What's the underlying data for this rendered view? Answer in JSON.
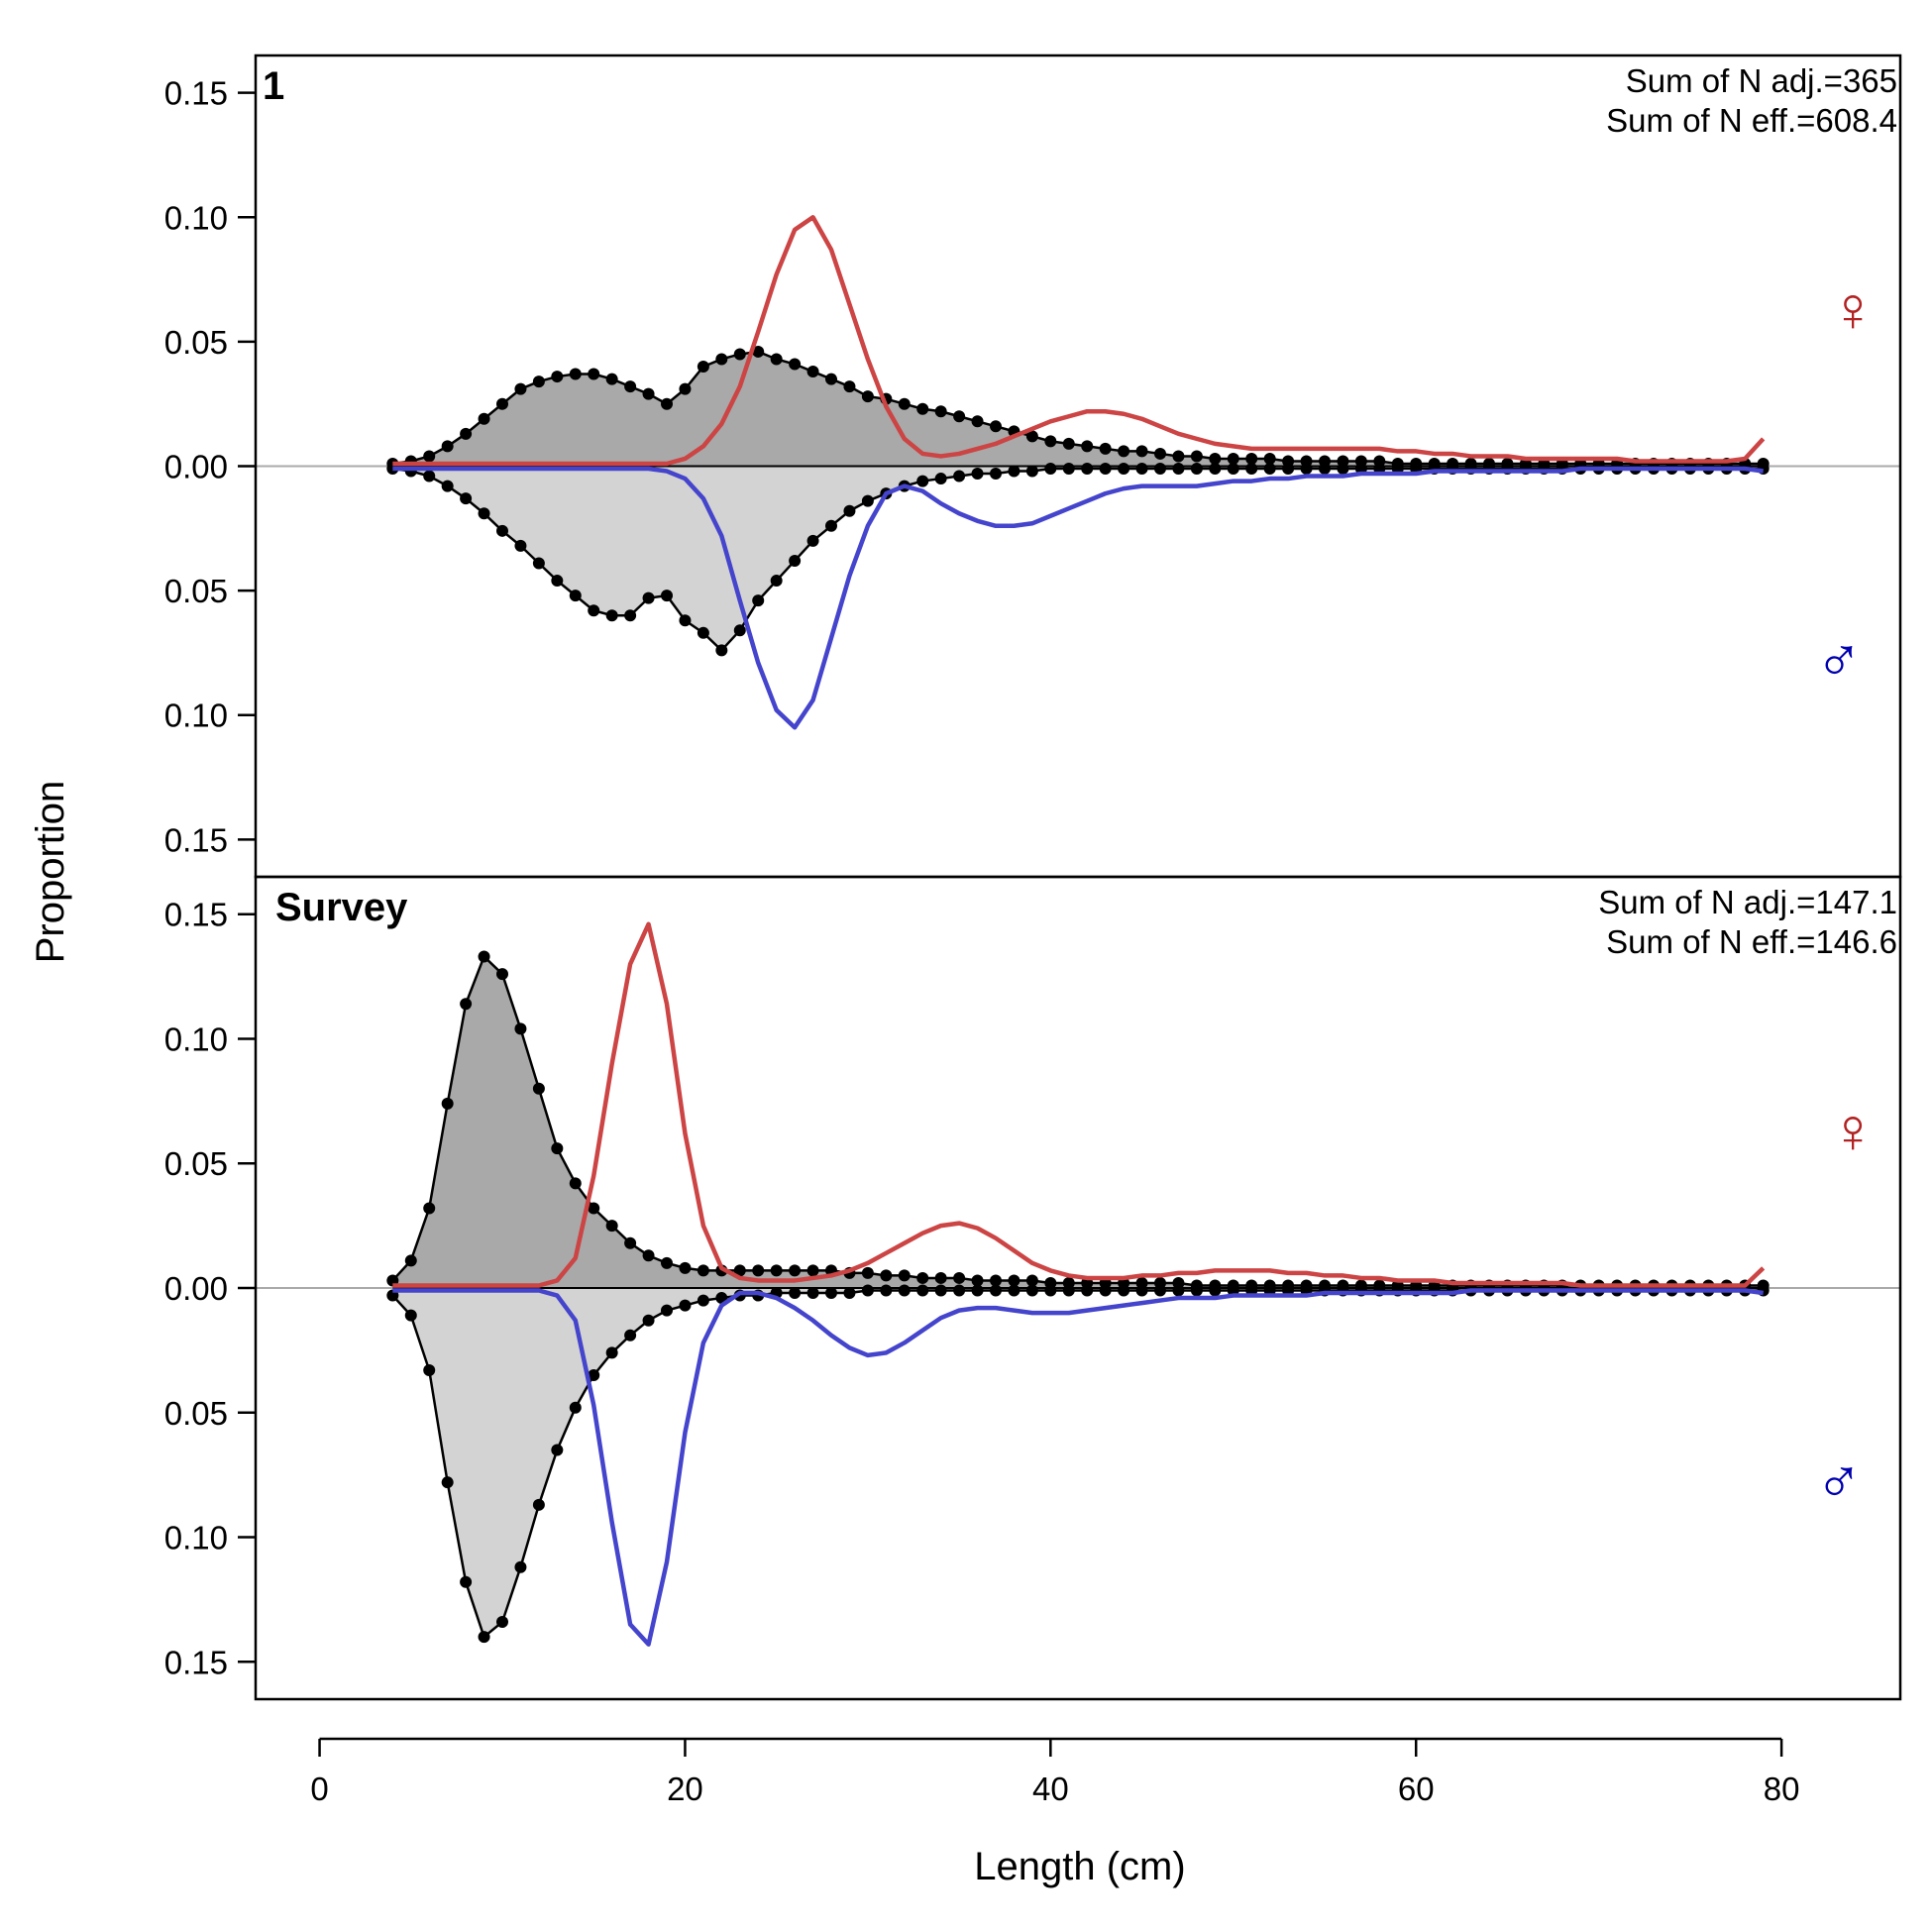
{
  "chart_data": {
    "type": "area",
    "xlabel": "Length (cm)",
    "ylabel": "Proportion",
    "xlim": [
      -3.5,
      86.5
    ],
    "x_ticks": [
      0,
      20,
      40,
      60,
      80
    ],
    "x_tick_labels": [
      "0",
      "20",
      "40",
      "60",
      "80"
    ],
    "ylim": [
      -0.165,
      0.165
    ],
    "y_ticks": [
      0.15,
      0.1,
      0.05,
      0.0,
      -0.05,
      -0.1,
      -0.15
    ],
    "y_tick_labels": [
      "0.15",
      "0.10",
      "0.05",
      "0.00",
      "0.05",
      "0.10",
      "0.15"
    ],
    "grid": false,
    "colors": {
      "female_fill": "#a9a9a9",
      "male_fill": "#d3d3d3",
      "female_line": "#cc4444",
      "male_line": "#4444cc",
      "female_symbol": "#b22222",
      "male_symbol": "#0000b0",
      "zero_line": "#aaaaaa",
      "observed": "#000000"
    },
    "symbols": {
      "female": "♀",
      "male": "♂"
    },
    "panels": [
      {
        "label": "1",
        "stats": [
          "Sum of N adj.=365",
          "Sum of N eff.=608.4"
        ],
        "x": [
          4,
          5,
          6,
          7,
          8,
          9,
          10,
          11,
          12,
          13,
          14,
          15,
          16,
          17,
          18,
          19,
          20,
          21,
          22,
          23,
          24,
          25,
          26,
          27,
          28,
          29,
          30,
          31,
          32,
          33,
          34,
          35,
          36,
          37,
          38,
          39,
          40,
          41,
          42,
          43,
          44,
          45,
          46,
          47,
          48,
          49,
          50,
          51,
          52,
          53,
          54,
          55,
          56,
          57,
          58,
          59,
          60,
          61,
          62,
          63,
          64,
          65,
          66,
          67,
          68,
          69,
          70,
          71,
          72,
          73,
          74,
          75,
          76,
          77,
          78,
          79
        ],
        "obs_female": [
          0.001,
          0.002,
          0.004,
          0.008,
          0.013,
          0.019,
          0.025,
          0.031,
          0.034,
          0.036,
          0.037,
          0.037,
          0.035,
          0.032,
          0.029,
          0.025,
          0.031,
          0.04,
          0.043,
          0.045,
          0.046,
          0.043,
          0.041,
          0.038,
          0.035,
          0.032,
          0.028,
          0.027,
          0.025,
          0.023,
          0.022,
          0.02,
          0.018,
          0.016,
          0.014,
          0.012,
          0.01,
          0.009,
          0.008,
          0.007,
          0.006,
          0.006,
          0.005,
          0.004,
          0.004,
          0.003,
          0.003,
          0.003,
          0.003,
          0.002,
          0.002,
          0.002,
          0.002,
          0.002,
          0.002,
          0.001,
          0.001,
          0.001,
          0.001,
          0.001,
          0.001,
          0.001,
          0.001,
          0.001,
          0.001,
          0.001,
          0.001,
          0.001,
          0.001,
          0.001,
          0.001,
          0.001,
          0.001,
          0.001,
          0.001,
          0.001
        ],
        "obs_male": [
          0.001,
          0.002,
          0.004,
          0.008,
          0.013,
          0.019,
          0.026,
          0.032,
          0.039,
          0.046,
          0.052,
          0.058,
          0.06,
          0.06,
          0.053,
          0.052,
          0.062,
          0.067,
          0.074,
          0.066,
          0.054,
          0.046,
          0.038,
          0.03,
          0.024,
          0.018,
          0.014,
          0.011,
          0.008,
          0.006,
          0.005,
          0.004,
          0.003,
          0.003,
          0.002,
          0.002,
          0.001,
          0.001,
          0.001,
          0.001,
          0.001,
          0.001,
          0.001,
          0.001,
          0.001,
          0.001,
          0.001,
          0.001,
          0.001,
          0.001,
          0.001,
          0.001,
          0.001,
          0.001,
          0.001,
          0.001,
          0.001,
          0.001,
          0.001,
          0.001,
          0.001,
          0.001,
          0.001,
          0.001,
          0.001,
          0.001,
          0.001,
          0.001,
          0.001,
          0.001,
          0.001,
          0.001,
          0.001,
          0.001,
          0.001,
          0.001
        ],
        "exp_female": [
          0.001,
          0.001,
          0.001,
          0.001,
          0.001,
          0.001,
          0.001,
          0.001,
          0.001,
          0.001,
          0.001,
          0.001,
          0.001,
          0.001,
          0.001,
          0.001,
          0.003,
          0.008,
          0.017,
          0.032,
          0.054,
          0.077,
          0.095,
          0.1,
          0.087,
          0.065,
          0.043,
          0.024,
          0.011,
          0.005,
          0.004,
          0.005,
          0.007,
          0.009,
          0.012,
          0.015,
          0.018,
          0.02,
          0.022,
          0.022,
          0.021,
          0.019,
          0.016,
          0.013,
          0.011,
          0.009,
          0.008,
          0.007,
          0.007,
          0.007,
          0.007,
          0.007,
          0.007,
          0.007,
          0.007,
          0.006,
          0.006,
          0.005,
          0.005,
          0.004,
          0.004,
          0.004,
          0.003,
          0.003,
          0.003,
          0.003,
          0.003,
          0.003,
          0.002,
          0.002,
          0.002,
          0.002,
          0.002,
          0.002,
          0.003,
          0.011
        ],
        "exp_male": [
          0.001,
          0.001,
          0.001,
          0.001,
          0.001,
          0.001,
          0.001,
          0.001,
          0.001,
          0.001,
          0.001,
          0.001,
          0.001,
          0.001,
          0.001,
          0.002,
          0.005,
          0.013,
          0.028,
          0.054,
          0.079,
          0.098,
          0.105,
          0.094,
          0.069,
          0.044,
          0.024,
          0.011,
          0.008,
          0.01,
          0.015,
          0.019,
          0.022,
          0.024,
          0.024,
          0.023,
          0.02,
          0.017,
          0.014,
          0.011,
          0.009,
          0.008,
          0.008,
          0.008,
          0.008,
          0.007,
          0.006,
          0.006,
          0.005,
          0.005,
          0.004,
          0.004,
          0.004,
          0.003,
          0.003,
          0.003,
          0.003,
          0.002,
          0.002,
          0.002,
          0.002,
          0.002,
          0.002,
          0.002,
          0.002,
          0.001,
          0.001,
          0.001,
          0.001,
          0.001,
          0.001,
          0.001,
          0.001,
          0.001,
          0.001,
          0.002
        ]
      },
      {
        "label": "Survey",
        "stats": [
          "Sum of N adj.=147.1",
          "Sum of N eff.=146.6"
        ],
        "x": [
          4,
          5,
          6,
          7,
          8,
          9,
          10,
          11,
          12,
          13,
          14,
          15,
          16,
          17,
          18,
          19,
          20,
          21,
          22,
          23,
          24,
          25,
          26,
          27,
          28,
          29,
          30,
          31,
          32,
          33,
          34,
          35,
          36,
          37,
          38,
          39,
          40,
          41,
          42,
          43,
          44,
          45,
          46,
          47,
          48,
          49,
          50,
          51,
          52,
          53,
          54,
          55,
          56,
          57,
          58,
          59,
          60,
          61,
          62,
          63,
          64,
          65,
          66,
          67,
          68,
          69,
          70,
          71,
          72,
          73,
          74,
          75,
          76,
          77,
          78,
          79
        ],
        "obs_female": [
          0.003,
          0.011,
          0.032,
          0.074,
          0.114,
          0.133,
          0.126,
          0.104,
          0.08,
          0.056,
          0.042,
          0.032,
          0.025,
          0.018,
          0.013,
          0.01,
          0.008,
          0.007,
          0.007,
          0.007,
          0.007,
          0.007,
          0.007,
          0.007,
          0.007,
          0.006,
          0.006,
          0.005,
          0.005,
          0.004,
          0.004,
          0.004,
          0.003,
          0.003,
          0.003,
          0.003,
          0.002,
          0.002,
          0.002,
          0.002,
          0.002,
          0.002,
          0.002,
          0.002,
          0.001,
          0.001,
          0.001,
          0.001,
          0.001,
          0.001,
          0.001,
          0.001,
          0.001,
          0.001,
          0.001,
          0.001,
          0.001,
          0.001,
          0.001,
          0.001,
          0.001,
          0.001,
          0.001,
          0.001,
          0.001,
          0.001,
          0.001,
          0.001,
          0.001,
          0.001,
          0.001,
          0.001,
          0.001,
          0.001,
          0.001,
          0.001
        ],
        "obs_male": [
          0.003,
          0.011,
          0.033,
          0.078,
          0.118,
          0.14,
          0.134,
          0.112,
          0.087,
          0.065,
          0.048,
          0.035,
          0.026,
          0.019,
          0.013,
          0.009,
          0.007,
          0.005,
          0.004,
          0.003,
          0.003,
          0.002,
          0.002,
          0.002,
          0.002,
          0.002,
          0.001,
          0.001,
          0.001,
          0.001,
          0.001,
          0.001,
          0.001,
          0.001,
          0.001,
          0.001,
          0.001,
          0.001,
          0.001,
          0.001,
          0.001,
          0.001,
          0.001,
          0.001,
          0.001,
          0.001,
          0.001,
          0.001,
          0.001,
          0.001,
          0.001,
          0.001,
          0.001,
          0.001,
          0.001,
          0.001,
          0.001,
          0.001,
          0.001,
          0.001,
          0.001,
          0.001,
          0.001,
          0.001,
          0.001,
          0.001,
          0.001,
          0.001,
          0.001,
          0.001,
          0.001,
          0.001,
          0.001,
          0.001,
          0.001,
          0.001
        ],
        "exp_female": [
          0.001,
          0.001,
          0.001,
          0.001,
          0.001,
          0.001,
          0.001,
          0.001,
          0.001,
          0.003,
          0.012,
          0.045,
          0.09,
          0.13,
          0.146,
          0.114,
          0.062,
          0.025,
          0.008,
          0.004,
          0.003,
          0.003,
          0.003,
          0.004,
          0.005,
          0.007,
          0.01,
          0.014,
          0.018,
          0.022,
          0.025,
          0.026,
          0.024,
          0.02,
          0.015,
          0.01,
          0.007,
          0.005,
          0.004,
          0.004,
          0.004,
          0.005,
          0.005,
          0.006,
          0.006,
          0.007,
          0.007,
          0.007,
          0.007,
          0.006,
          0.006,
          0.005,
          0.005,
          0.004,
          0.004,
          0.003,
          0.003,
          0.003,
          0.002,
          0.002,
          0.002,
          0.002,
          0.002,
          0.002,
          0.002,
          0.001,
          0.001,
          0.001,
          0.001,
          0.001,
          0.001,
          0.001,
          0.001,
          0.001,
          0.001,
          0.008
        ],
        "exp_male": [
          0.001,
          0.001,
          0.001,
          0.001,
          0.001,
          0.001,
          0.001,
          0.001,
          0.001,
          0.003,
          0.013,
          0.047,
          0.094,
          0.135,
          0.143,
          0.11,
          0.058,
          0.022,
          0.007,
          0.002,
          0.002,
          0.004,
          0.008,
          0.013,
          0.019,
          0.024,
          0.027,
          0.026,
          0.022,
          0.017,
          0.012,
          0.009,
          0.008,
          0.008,
          0.009,
          0.01,
          0.01,
          0.01,
          0.009,
          0.008,
          0.007,
          0.006,
          0.005,
          0.004,
          0.004,
          0.004,
          0.003,
          0.003,
          0.003,
          0.003,
          0.003,
          0.002,
          0.002,
          0.002,
          0.002,
          0.002,
          0.002,
          0.002,
          0.002,
          0.001,
          0.001,
          0.001,
          0.001,
          0.001,
          0.001,
          0.001,
          0.001,
          0.001,
          0.001,
          0.001,
          0.001,
          0.001,
          0.001,
          0.001,
          0.001,
          0.002
        ]
      }
    ]
  }
}
